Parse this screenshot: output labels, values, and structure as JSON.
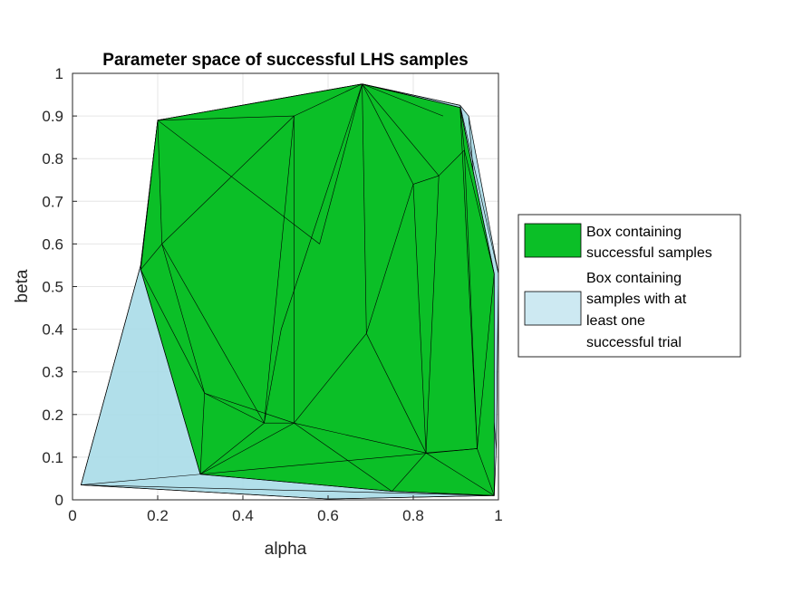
{
  "chart_data": {
    "type": "3d-hull",
    "title": "Parameter space of successful LHS samples",
    "xlabel": "alpha",
    "ylabel": "beta",
    "xlim": [
      0,
      1
    ],
    "ylim": [
      0,
      1
    ],
    "xticks": [
      "0",
      "0.2",
      "0.4",
      "0.6",
      "0.8",
      "1"
    ],
    "yticks": [
      "0",
      "0.1",
      "0.2",
      "0.3",
      "0.4",
      "0.5",
      "0.6",
      "0.7",
      "0.8",
      "0.9",
      "1"
    ],
    "grid": true,
    "legend_position": "right",
    "series": [
      {
        "name": "Box containing samples with at least one successful trial",
        "color": "#a8dbe8",
        "alpha": 0.9,
        "outline": [
          [
            0.02,
            0.035
          ],
          [
            0.16,
            0.55
          ],
          [
            0.2,
            0.89
          ],
          [
            0.68,
            0.975
          ],
          [
            0.91,
            0.925
          ],
          [
            0.93,
            0.9
          ],
          [
            1.0,
            0.53
          ],
          [
            0.995,
            0.12
          ],
          [
            0.99,
            0.01
          ],
          [
            0.6,
            0.002
          ],
          [
            0.02,
            0.035
          ]
        ],
        "edges": [
          [
            [
              0.02,
              0.035
            ],
            [
              0.16,
              0.55
            ]
          ],
          [
            [
              0.02,
              0.035
            ],
            [
              0.3,
              0.06
            ]
          ],
          [
            [
              0.02,
              0.035
            ],
            [
              0.99,
              0.01
            ]
          ],
          [
            [
              0.02,
              0.035
            ],
            [
              0.6,
              0.002
            ]
          ],
          [
            [
              0.6,
              0.002
            ],
            [
              0.99,
              0.01
            ]
          ],
          [
            [
              0.16,
              0.55
            ],
            [
              0.2,
              0.89
            ]
          ],
          [
            [
              0.68,
              0.975
            ],
            [
              0.91,
              0.925
            ]
          ],
          [
            [
              0.91,
              0.925
            ],
            [
              1.0,
              0.53
            ]
          ],
          [
            [
              0.93,
              0.9
            ],
            [
              0.995,
              0.12
            ]
          ]
        ]
      },
      {
        "name": "Box containing successful samples",
        "color": "#0bbf27",
        "alpha": 1,
        "outline": [
          [
            0.16,
            0.54
          ],
          [
            0.2,
            0.89
          ],
          [
            0.68,
            0.975
          ],
          [
            0.91,
            0.92
          ],
          [
            0.99,
            0.53
          ],
          [
            0.99,
            0.01
          ],
          [
            0.75,
            0.02
          ],
          [
            0.3,
            0.06
          ],
          [
            0.16,
            0.54
          ]
        ],
        "edges": [
          [
            [
              0.16,
              0.54
            ],
            [
              0.2,
              0.89
            ]
          ],
          [
            [
              0.2,
              0.89
            ],
            [
              0.68,
              0.975
            ]
          ],
          [
            [
              0.68,
              0.975
            ],
            [
              0.91,
              0.92
            ]
          ],
          [
            [
              0.91,
              0.92
            ],
            [
              0.99,
              0.53
            ]
          ],
          [
            [
              0.99,
              0.53
            ],
            [
              0.99,
              0.01
            ]
          ],
          [
            [
              0.99,
              0.01
            ],
            [
              0.75,
              0.02
            ]
          ],
          [
            [
              0.75,
              0.02
            ],
            [
              0.3,
              0.06
            ]
          ],
          [
            [
              0.3,
              0.06
            ],
            [
              0.16,
              0.54
            ]
          ],
          [
            [
              0.2,
              0.89
            ],
            [
              0.52,
              0.9
            ]
          ],
          [
            [
              0.52,
              0.9
            ],
            [
              0.68,
              0.975
            ]
          ],
          [
            [
              0.2,
              0.89
            ],
            [
              0.58,
              0.6
            ]
          ],
          [
            [
              0.58,
              0.6
            ],
            [
              0.68,
              0.975
            ]
          ],
          [
            [
              0.2,
              0.89
            ],
            [
              0.21,
              0.6
            ]
          ],
          [
            [
              0.21,
              0.6
            ],
            [
              0.16,
              0.54
            ]
          ],
          [
            [
              0.21,
              0.6
            ],
            [
              0.52,
              0.9
            ]
          ],
          [
            [
              0.21,
              0.6
            ],
            [
              0.31,
              0.25
            ]
          ],
          [
            [
              0.21,
              0.6
            ],
            [
              0.45,
              0.18
            ]
          ],
          [
            [
              0.52,
              0.9
            ],
            [
              0.52,
              0.18
            ]
          ],
          [
            [
              0.52,
              0.9
            ],
            [
              0.45,
              0.18
            ]
          ],
          [
            [
              0.68,
              0.975
            ],
            [
              0.49,
              0.4
            ]
          ],
          [
            [
              0.68,
              0.975
            ],
            [
              0.69,
              0.39
            ]
          ],
          [
            [
              0.68,
              0.975
            ],
            [
              0.8,
              0.74
            ]
          ],
          [
            [
              0.68,
              0.975
            ],
            [
              0.86,
              0.76
            ]
          ],
          [
            [
              0.68,
              0.975
            ],
            [
              0.87,
              0.9
            ]
          ],
          [
            [
              0.8,
              0.74
            ],
            [
              0.86,
              0.76
            ]
          ],
          [
            [
              0.8,
              0.74
            ],
            [
              0.83,
              0.11
            ]
          ],
          [
            [
              0.8,
              0.74
            ],
            [
              0.69,
              0.39
            ]
          ],
          [
            [
              0.86,
              0.76
            ],
            [
              0.83,
              0.11
            ]
          ],
          [
            [
              0.86,
              0.76
            ],
            [
              0.92,
              0.82
            ]
          ],
          [
            [
              0.91,
              0.92
            ],
            [
              0.92,
              0.82
            ]
          ],
          [
            [
              0.92,
              0.82
            ],
            [
              0.95,
              0.12
            ]
          ],
          [
            [
              0.91,
              0.92
            ],
            [
              0.95,
              0.12
            ]
          ],
          [
            [
              0.92,
              0.82
            ],
            [
              0.99,
              0.53
            ]
          ],
          [
            [
              0.95,
              0.12
            ],
            [
              0.99,
              0.53
            ]
          ],
          [
            [
              0.95,
              0.12
            ],
            [
              0.99,
              0.01
            ]
          ],
          [
            [
              0.69,
              0.39
            ],
            [
              0.52,
              0.18
            ]
          ],
          [
            [
              0.69,
              0.39
            ],
            [
              0.83,
              0.11
            ]
          ],
          [
            [
              0.52,
              0.18
            ],
            [
              0.83,
              0.11
            ]
          ],
          [
            [
              0.52,
              0.18
            ],
            [
              0.31,
              0.25
            ]
          ],
          [
            [
              0.31,
              0.25
            ],
            [
              0.3,
              0.06
            ]
          ],
          [
            [
              0.31,
              0.25
            ],
            [
              0.45,
              0.18
            ]
          ],
          [
            [
              0.45,
              0.18
            ],
            [
              0.52,
              0.18
            ]
          ],
          [
            [
              0.45,
              0.18
            ],
            [
              0.3,
              0.06
            ]
          ],
          [
            [
              0.52,
              0.18
            ],
            [
              0.3,
              0.06
            ]
          ],
          [
            [
              0.52,
              0.18
            ],
            [
              0.75,
              0.02
            ]
          ],
          [
            [
              0.83,
              0.11
            ],
            [
              0.75,
              0.02
            ]
          ],
          [
            [
              0.83,
              0.11
            ],
            [
              0.95,
              0.12
            ]
          ],
          [
            [
              0.83,
              0.11
            ],
            [
              0.99,
              0.01
            ]
          ],
          [
            [
              0.16,
              0.54
            ],
            [
              0.31,
              0.25
            ]
          ],
          [
            [
              0.49,
              0.4
            ],
            [
              0.45,
              0.18
            ]
          ],
          [
            [
              0.3,
              0.06
            ],
            [
              0.95,
              0.12
            ]
          ]
        ]
      }
    ]
  }
}
